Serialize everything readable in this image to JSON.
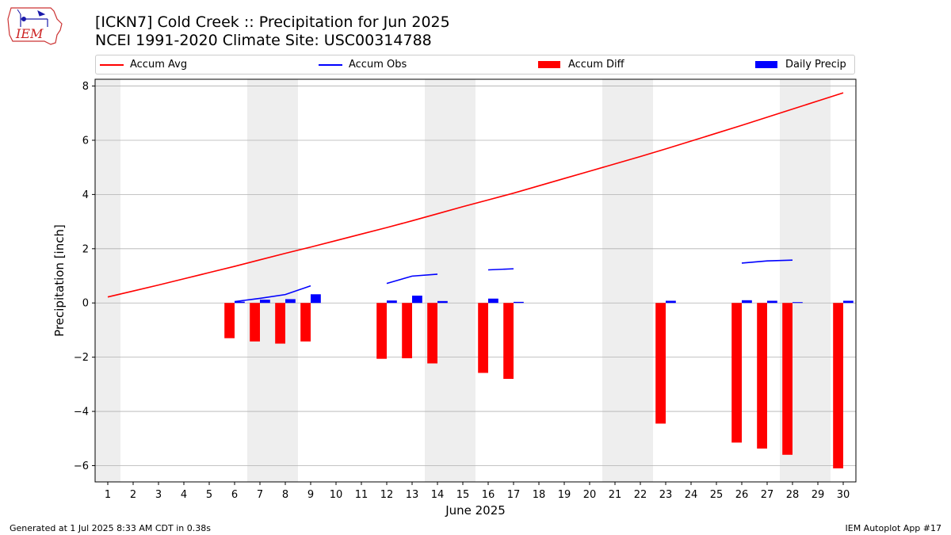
{
  "header": {
    "title_line1": "[ICKN7] Cold Creek :: Precipitation for Jun 2025",
    "title_line2": "NCEI 1991-2020 Climate Site: USC00314788",
    "logo_text": "IEM"
  },
  "legend": {
    "items": [
      {
        "label": "Accum Avg",
        "symbol": "line",
        "color": "#ff0000"
      },
      {
        "label": "Accum Obs",
        "symbol": "line",
        "color": "#0000ff"
      },
      {
        "label": "Accum Diff",
        "symbol": "bar",
        "color": "#ff0000"
      },
      {
        "label": "Daily Precip",
        "symbol": "bar",
        "color": "#0000ff"
      }
    ],
    "placement": "top"
  },
  "footer": {
    "left": "Generated at 1 Jul 2025 8:33 AM CDT in 0.38s",
    "right": "IEM Autoplot App #17"
  },
  "colors": {
    "avg": "#ff0000",
    "obs": "#0000ff",
    "diff": "#ff0000",
    "daily": "#0000ff",
    "weekend_shade": "#eeeeee",
    "grid": "#b0b0b0"
  },
  "chart_data": {
    "type": "bar",
    "xlabel": "June 2025",
    "ylabel": "Precipitation [inch]",
    "xlim": [
      0.5,
      30.5
    ],
    "ylim": [
      -6.6,
      8.25
    ],
    "yticks": [
      -6,
      -4,
      -2,
      0,
      2,
      4,
      6,
      8
    ],
    "ytick_labels": [
      "−6",
      "−4",
      "−2",
      "0",
      "2",
      "4",
      "6",
      "8"
    ],
    "days": [
      1,
      2,
      3,
      4,
      5,
      6,
      7,
      8,
      9,
      10,
      11,
      12,
      13,
      14,
      15,
      16,
      17,
      18,
      19,
      20,
      21,
      22,
      23,
      24,
      25,
      26,
      27,
      28,
      29,
      30
    ],
    "grid": "horizontal",
    "weekend_days": [
      1,
      7,
      8,
      14,
      15,
      21,
      22,
      28,
      29
    ],
    "accum_avg": [
      0.22,
      0.44,
      0.66,
      0.89,
      1.12,
      1.35,
      1.59,
      1.83,
      2.06,
      2.3,
      2.54,
      2.78,
      3.03,
      3.29,
      3.55,
      3.8,
      4.05,
      4.32,
      4.59,
      4.86,
      5.13,
      5.4,
      5.68,
      5.97,
      6.26,
      6.55,
      6.85,
      7.15,
      7.45,
      7.75
    ],
    "accum_obs_segments": [
      {
        "days": [
          6,
          7,
          8,
          9
        ],
        "values": [
          0.05,
          0.17,
          0.31,
          0.63
        ]
      },
      {
        "days": [
          12,
          13,
          14
        ],
        "values": [
          0.72,
          0.99,
          1.06
        ]
      },
      {
        "days": [
          16,
          17
        ],
        "values": [
          1.22,
          1.26
        ]
      },
      {
        "days": [
          26,
          27,
          28
        ],
        "values": [
          1.47,
          1.55,
          1.58
        ]
      }
    ],
    "accum_diff": [
      {
        "day": 6,
        "value": -1.3
      },
      {
        "day": 7,
        "value": -1.42
      },
      {
        "day": 8,
        "value": -1.5
      },
      {
        "day": 9,
        "value": -1.42
      },
      {
        "day": 12,
        "value": -2.06
      },
      {
        "day": 13,
        "value": -2.04
      },
      {
        "day": 14,
        "value": -2.23
      },
      {
        "day": 16,
        "value": -2.58
      },
      {
        "day": 17,
        "value": -2.8
      },
      {
        "day": 23,
        "value": -4.45
      },
      {
        "day": 26,
        "value": -5.15
      },
      {
        "day": 27,
        "value": -5.37
      },
      {
        "day": 28,
        "value": -5.6
      },
      {
        "day": 30,
        "value": -6.1
      }
    ],
    "daily_precip": [
      {
        "day": 6,
        "value": 0.05
      },
      {
        "day": 7,
        "value": 0.12
      },
      {
        "day": 8,
        "value": 0.14
      },
      {
        "day": 9,
        "value": 0.32
      },
      {
        "day": 12,
        "value": 0.09
      },
      {
        "day": 13,
        "value": 0.27
      },
      {
        "day": 14,
        "value": 0.07
      },
      {
        "day": 16,
        "value": 0.16
      },
      {
        "day": 17,
        "value": 0.04
      },
      {
        "day": 23,
        "value": 0.08
      },
      {
        "day": 26,
        "value": 0.1
      },
      {
        "day": 27,
        "value": 0.08
      },
      {
        "day": 28,
        "value": 0.03
      },
      {
        "day": 30,
        "value": 0.08
      }
    ]
  }
}
